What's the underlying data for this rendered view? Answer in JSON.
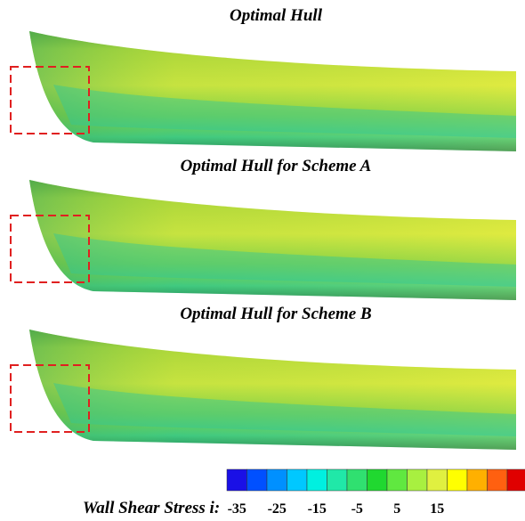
{
  "panels": [
    {
      "title": "Optimal Hull"
    },
    {
      "title": "Optimal Hull for Scheme A"
    },
    {
      "title": "Optimal Hull for Scheme B"
    }
  ],
  "colorbar": {
    "label": "Wall Shear Stress i:",
    "ticks": [
      -35,
      -25,
      -15,
      -5,
      5,
      15
    ],
    "colors": [
      "#1a10e6",
      "#0050ff",
      "#0090ff",
      "#00c8ff",
      "#00f0e0",
      "#20e8a8",
      "#30e070",
      "#20d830",
      "#60e840",
      "#a8f040",
      "#e0f040",
      "#ffff00",
      "#ffb000",
      "#ff6010",
      "#e00000"
    ]
  }
}
